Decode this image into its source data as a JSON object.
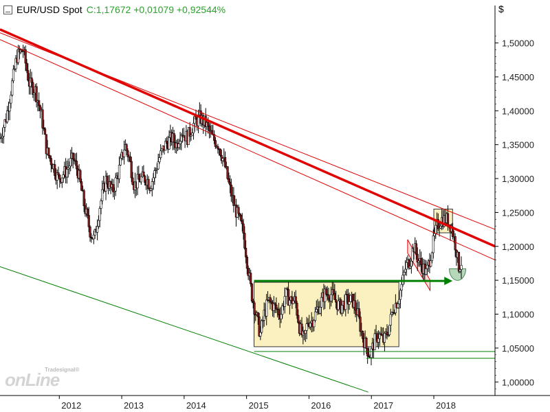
{
  "header": {
    "symbol": "EUR/USD Spot",
    "close_text": "C:1,17672 +0,01079 +0,92544%",
    "currency": "$"
  },
  "watermark": {
    "brand_small": "Tradesignal®",
    "brand_large": "onLine"
  },
  "colors": {
    "candle_body": "#8b1a1a",
    "trend_red": "#e00000",
    "support_green": "#008000",
    "range_box_fill": "#fbf0bf",
    "header_green": "#2ca02c",
    "axis": "#000000"
  },
  "chart_data": {
    "type": "candlestick",
    "title": "EUR/USD Spot",
    "ylabel": "$",
    "ylim": [
      0.98,
      1.535
    ],
    "xlim": [
      2011.05,
      2018.98
    ],
    "y_ticks": [
      "1,50000",
      "1,45000",
      "1,40000",
      "1,35000",
      "1,30000",
      "1,25000",
      "1,20000",
      "1,15000",
      "1,10000",
      "1,05000",
      "1,00000"
    ],
    "y_tick_values": [
      1.5,
      1.45,
      1.4,
      1.35,
      1.3,
      1.25,
      1.2,
      1.15,
      1.1,
      1.05,
      1.0
    ],
    "x_ticks": [
      "2012",
      "2013",
      "2014",
      "2015",
      "2016",
      "2017",
      "2018"
    ],
    "x_tick_values": [
      2012,
      2013,
      2014,
      2015,
      2016,
      2017,
      2018
    ],
    "price_path": [
      [
        2011.05,
        1.36
      ],
      [
        2011.15,
        1.39
      ],
      [
        2011.32,
        1.48
      ],
      [
        2011.42,
        1.49
      ],
      [
        2011.52,
        1.44
      ],
      [
        2011.62,
        1.43
      ],
      [
        2011.72,
        1.39
      ],
      [
        2011.8,
        1.34
      ],
      [
        2011.9,
        1.32
      ],
      [
        2011.98,
        1.3
      ],
      [
        2012.1,
        1.31
      ],
      [
        2012.22,
        1.33
      ],
      [
        2012.3,
        1.31
      ],
      [
        2012.4,
        1.26
      ],
      [
        2012.5,
        1.22
      ],
      [
        2012.56,
        1.21
      ],
      [
        2012.65,
        1.26
      ],
      [
        2012.75,
        1.3
      ],
      [
        2012.85,
        1.28
      ],
      [
        2012.95,
        1.31
      ],
      [
        2013.05,
        1.35
      ],
      [
        2013.12,
        1.33
      ],
      [
        2013.2,
        1.29
      ],
      [
        2013.3,
        1.3
      ],
      [
        2013.4,
        1.3
      ],
      [
        2013.45,
        1.29
      ],
      [
        2013.5,
        1.3
      ],
      [
        2013.6,
        1.33
      ],
      [
        2013.7,
        1.35
      ],
      [
        2013.8,
        1.36
      ],
      [
        2013.88,
        1.35
      ],
      [
        2013.95,
        1.37
      ],
      [
        2014.05,
        1.36
      ],
      [
        2014.15,
        1.38
      ],
      [
        2014.25,
        1.39
      ],
      [
        2014.35,
        1.38
      ],
      [
        2014.45,
        1.36
      ],
      [
        2014.55,
        1.35
      ],
      [
        2014.65,
        1.32
      ],
      [
        2014.72,
        1.29
      ],
      [
        2014.8,
        1.26
      ],
      [
        2014.88,
        1.24
      ],
      [
        2014.95,
        1.22
      ],
      [
        2015.02,
        1.17
      ],
      [
        2015.08,
        1.13
      ],
      [
        2015.15,
        1.1
      ],
      [
        2015.22,
        1.07
      ],
      [
        2015.28,
        1.1
      ],
      [
        2015.35,
        1.12
      ],
      [
        2015.45,
        1.11
      ],
      [
        2015.55,
        1.1
      ],
      [
        2015.62,
        1.13
      ],
      [
        2015.7,
        1.12
      ],
      [
        2015.78,
        1.12
      ],
      [
        2015.85,
        1.08
      ],
      [
        2015.92,
        1.06
      ],
      [
        2015.98,
        1.09
      ],
      [
        2016.05,
        1.09
      ],
      [
        2016.15,
        1.11
      ],
      [
        2016.25,
        1.13
      ],
      [
        2016.35,
        1.13
      ],
      [
        2016.42,
        1.12
      ],
      [
        2016.5,
        1.11
      ],
      [
        2016.6,
        1.12
      ],
      [
        2016.7,
        1.12
      ],
      [
        2016.78,
        1.1
      ],
      [
        2016.85,
        1.07
      ],
      [
        2016.92,
        1.05
      ],
      [
        2016.98,
        1.04
      ],
      [
        2017.05,
        1.06
      ],
      [
        2017.12,
        1.07
      ],
      [
        2017.2,
        1.06
      ],
      [
        2017.28,
        1.08
      ],
      [
        2017.35,
        1.11
      ],
      [
        2017.42,
        1.12
      ],
      [
        2017.48,
        1.14
      ],
      [
        2017.55,
        1.17
      ],
      [
        2017.62,
        1.18
      ],
      [
        2017.68,
        1.2
      ],
      [
        2017.75,
        1.18
      ],
      [
        2017.82,
        1.17
      ],
      [
        2017.88,
        1.16
      ],
      [
        2017.93,
        1.18
      ],
      [
        2017.98,
        1.2
      ],
      [
        2018.05,
        1.23
      ],
      [
        2018.12,
        1.24
      ],
      [
        2018.2,
        1.24
      ],
      [
        2018.28,
        1.23
      ],
      [
        2018.35,
        1.2
      ],
      [
        2018.4,
        1.17
      ],
      [
        2018.44,
        1.177
      ]
    ],
    "trendlines": [
      {
        "color": "red",
        "width": "bold",
        "from": [
          2011.05,
          1.52
        ],
        "to": [
          2018.98,
          1.2
        ]
      },
      {
        "color": "red",
        "width": "thin",
        "from": [
          2011.05,
          1.515
        ],
        "to": [
          2018.98,
          1.225
        ]
      },
      {
        "color": "red",
        "width": "thin",
        "from": [
          2011.05,
          1.505
        ],
        "to": [
          2018.98,
          1.18
        ]
      },
      {
        "color": "green",
        "width": "thin",
        "from": [
          2011.05,
          1.17
        ],
        "to": [
          2016.95,
          0.985
        ]
      }
    ],
    "range_box": {
      "x": [
        2015.12,
        2017.44
      ],
      "y": [
        1.052,
        1.147
      ]
    },
    "top_box": {
      "x": [
        2018.0,
        2018.3
      ],
      "y": [
        1.22,
        1.255
      ]
    },
    "support_lines": [
      {
        "y": 1.045,
        "x_from": 2015.12
      },
      {
        "y": 1.035,
        "x_from": 2016.92
      }
    ],
    "arrow": {
      "x_from": 2015.12,
      "x_to": 2018.3,
      "y": 1.149
    },
    "flag_channel": {
      "x": [
        2017.58,
        2017.94
      ],
      "top": [
        1.21,
        1.15
      ],
      "bottom": [
        1.19,
        1.135
      ]
    },
    "target_zone": {
      "center": [
        2018.38,
        1.167
      ]
    }
  }
}
